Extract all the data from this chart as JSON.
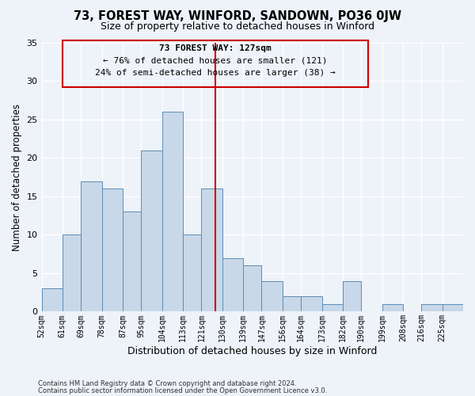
{
  "title": "73, FOREST WAY, WINFORD, SANDOWN, PO36 0JW",
  "subtitle": "Size of property relative to detached houses in Winford",
  "xlabel": "Distribution of detached houses by size in Winford",
  "ylabel": "Number of detached properties",
  "footnote1": "Contains HM Land Registry data © Crown copyright and database right 2024.",
  "footnote2": "Contains public sector information licensed under the Open Government Licence v3.0.",
  "annotation_line1": "73 FOREST WAY: 127sqm",
  "annotation_line2": "← 76% of detached houses are smaller (121)",
  "annotation_line3": "24% of semi-detached houses are larger (38) →",
  "subject_value": 127,
  "bar_color": "#c8d8e8",
  "bar_edge_color": "#5b8db8",
  "subject_line_color": "#cc0000",
  "background_color": "#eef2f9",
  "grid_color": "#ffffff",
  "annotation_box_color": "#cc0000",
  "categories": [
    "52sqm",
    "61sqm",
    "69sqm",
    "78sqm",
    "87sqm",
    "95sqm",
    "104sqm",
    "113sqm",
    "121sqm",
    "130sqm",
    "139sqm",
    "147sqm",
    "156sqm",
    "164sqm",
    "173sqm",
    "182sqm",
    "190sqm",
    "199sqm",
    "208sqm",
    "216sqm",
    "225sqm"
  ],
  "values": [
    3,
    10,
    17,
    16,
    13,
    21,
    26,
    10,
    16,
    7,
    6,
    4,
    2,
    2,
    1,
    4,
    0,
    1,
    0,
    1,
    1
  ],
  "bin_edges": [
    52,
    61,
    69,
    78,
    87,
    95,
    104,
    113,
    121,
    130,
    139,
    147,
    156,
    164,
    173,
    182,
    190,
    199,
    208,
    216,
    225,
    234
  ],
  "ylim": [
    0,
    35
  ],
  "yticks": [
    0,
    5,
    10,
    15,
    20,
    25,
    30,
    35
  ]
}
